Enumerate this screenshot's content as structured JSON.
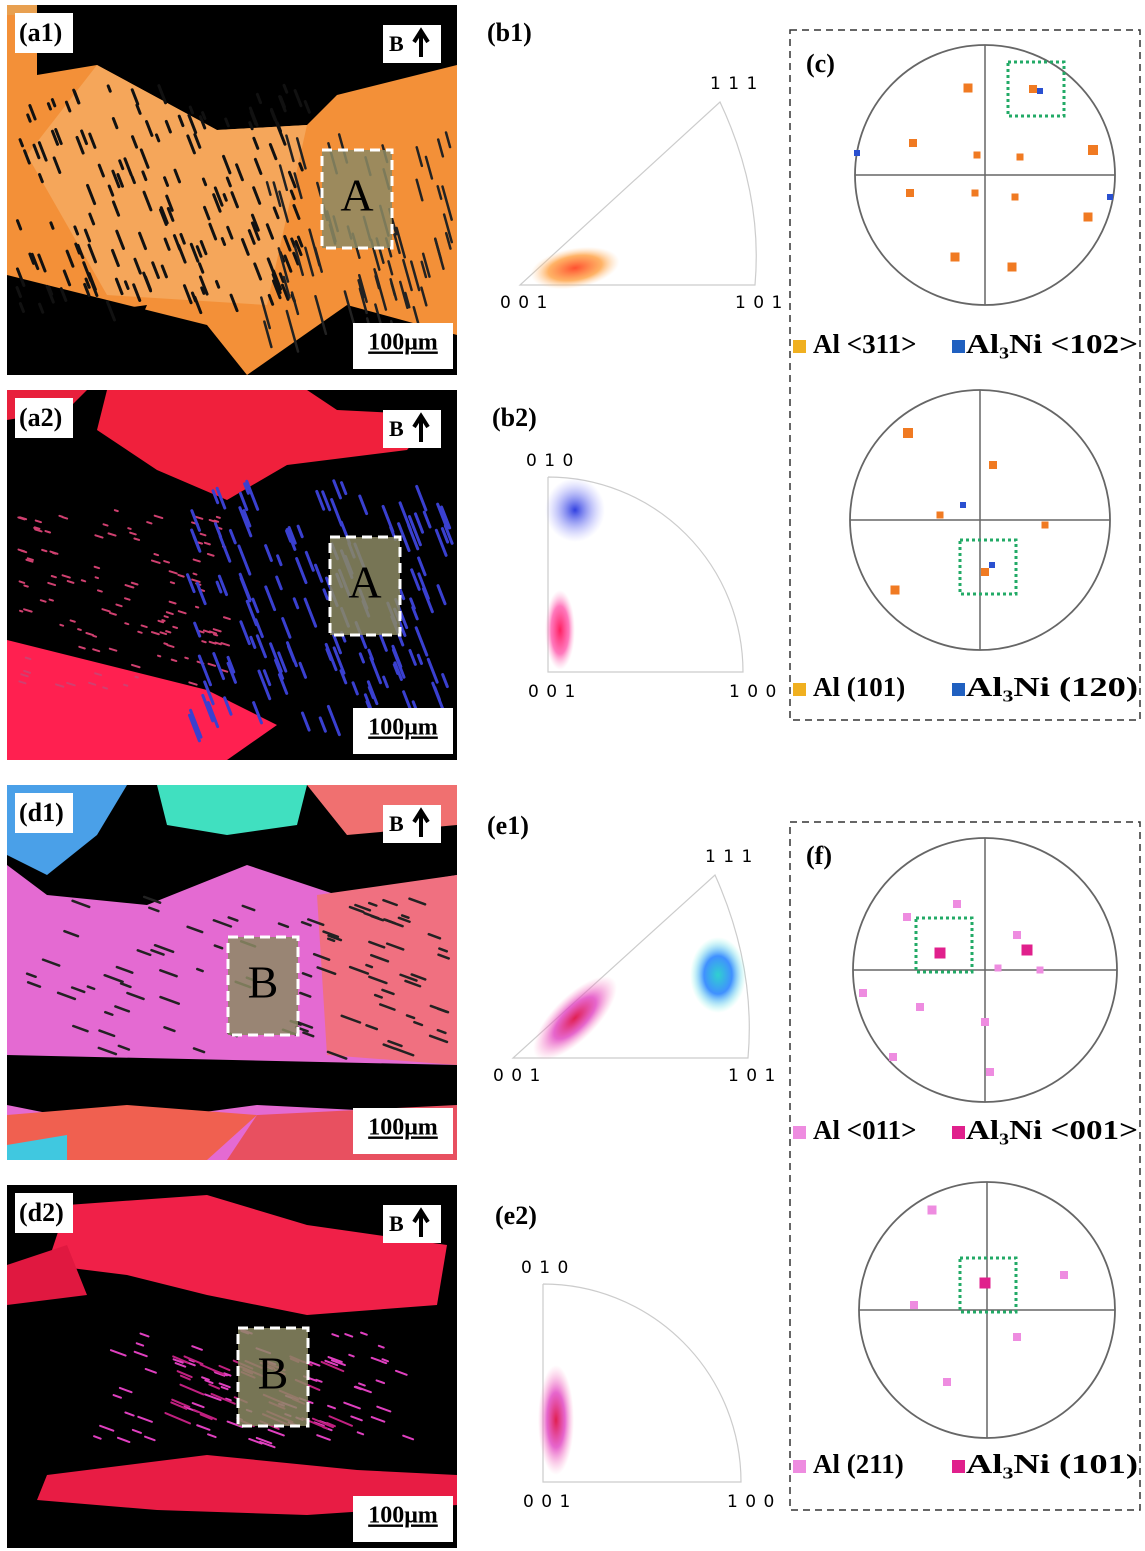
{
  "panels": {
    "a1": {
      "label": "(a1)",
      "direction": "B",
      "region": "A",
      "scale": "100μm"
    },
    "a2": {
      "label": "(a2)",
      "direction": "B",
      "region": "A",
      "scale": "100μm"
    },
    "d1": {
      "label": "(d1)",
      "direction": "B",
      "region": "B",
      "scale": "100μm"
    },
    "d2": {
      "label": "(d2)",
      "direction": "B",
      "region": "B",
      "scale": "100μm"
    }
  },
  "ipf": {
    "b1": {
      "label": "(b1)",
      "corners": [
        "0 0 1",
        "1 0 1",
        "1 1 1"
      ]
    },
    "b2": {
      "label": "(b2)",
      "corners": [
        "0 0 1",
        "1 0 0",
        "0 1 0"
      ]
    },
    "e1": {
      "label": "(e1)",
      "corners": [
        "0 0 1",
        "1 0 1",
        "1 1 1"
      ]
    },
    "e2": {
      "label": "(e2)",
      "corners": [
        "0 0 1",
        "1 0 0",
        "0 1 0"
      ]
    }
  },
  "pole_figures": {
    "c": {
      "label": "(c)",
      "legend_top": [
        "Al <311>",
        "Al₃Ni <102>"
      ],
      "legend_bottom": [
        "Al (101)",
        "Al₃Ni (120)"
      ]
    },
    "f": {
      "label": "(f)",
      "legend_top": [
        "Al <011>",
        "Al₃Ni <001>"
      ],
      "legend_bottom": [
        "Al (211)",
        "Al₃Ni (101)"
      ]
    }
  }
}
